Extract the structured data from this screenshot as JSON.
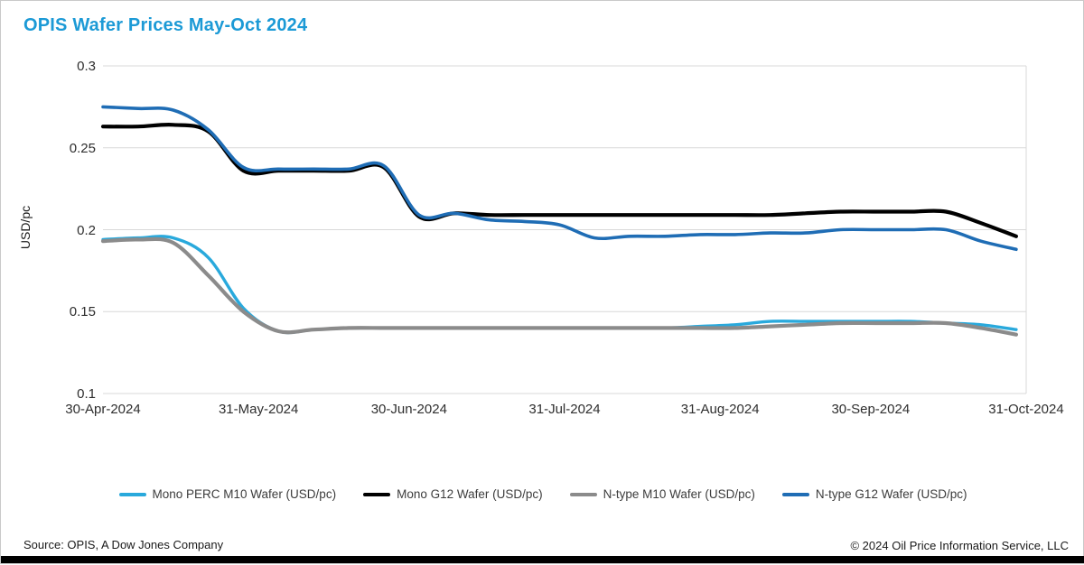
{
  "title": "OPIS Wafer Prices May-Oct 2024",
  "title_color": "#1c9ad6",
  "footer": {
    "source": "Source: OPIS, A Dow Jones Company",
    "copyright": "© 2024 Oil Price Information Service, LLC"
  },
  "colors": {
    "gridline": "#d9d9d9",
    "axis_text": "#2e2e2e",
    "bottom_bar": "#000000"
  },
  "chart_data": {
    "type": "line",
    "title": "OPIS Wafer Prices May-Oct 2024",
    "xlabel": "",
    "ylabel": "USD/pc",
    "ylim": [
      0.1,
      0.3
    ],
    "yticks": [
      0.3,
      0.25,
      0.2,
      0.15,
      0.1
    ],
    "grid": "horizontal",
    "legend_position": "bottom",
    "xtick_labels": [
      "30-Apr-2024",
      "31-May-2024",
      "30-Jun-2024",
      "31-Jul-2024",
      "31-Aug-2024",
      "30-Sep-2024",
      "31-Oct-2024"
    ],
    "xtick_days": [
      0,
      31,
      61,
      92,
      123,
      153,
      184
    ],
    "x_days": [
      0,
      7,
      14,
      21,
      28,
      35,
      42,
      49,
      56,
      63,
      70,
      77,
      84,
      91,
      98,
      105,
      112,
      119,
      126,
      133,
      140,
      147,
      154,
      161,
      168,
      175,
      182
    ],
    "x_dates": [
      "30-Apr",
      "07-May",
      "14-May",
      "21-May",
      "28-May",
      "04-Jun",
      "11-Jun",
      "18-Jun",
      "25-Jun",
      "02-Jul",
      "09-Jul",
      "16-Jul",
      "23-Jul",
      "30-Jul",
      "06-Aug",
      "13-Aug",
      "20-Aug",
      "27-Aug",
      "03-Sep",
      "10-Sep",
      "17-Sep",
      "24-Sep",
      "01-Oct",
      "08-Oct",
      "15-Oct",
      "22-Oct",
      "29-Oct"
    ],
    "series": [
      {
        "name": "Mono PERC M10 Wafer (USD/pc)",
        "color": "#29a9dc",
        "width": 3.4,
        "values": [
          0.194,
          0.195,
          0.195,
          0.183,
          0.152,
          0.138,
          0.139,
          0.14,
          0.14,
          0.14,
          0.14,
          0.14,
          0.14,
          0.14,
          0.14,
          0.14,
          0.14,
          0.141,
          0.142,
          0.144,
          0.144,
          0.144,
          0.144,
          0.144,
          0.143,
          0.142,
          0.139
        ]
      },
      {
        "name": "Mono G12 Wafer (USD/pc)",
        "color": "#000000",
        "width": 4.2,
        "values": [
          0.263,
          0.263,
          0.264,
          0.26,
          0.236,
          0.236,
          0.236,
          0.236,
          0.238,
          0.208,
          0.21,
          0.209,
          0.209,
          0.209,
          0.209,
          0.209,
          0.209,
          0.209,
          0.209,
          0.209,
          0.21,
          0.211,
          0.211,
          0.211,
          0.211,
          0.204,
          0.196
        ]
      },
      {
        "name": "N-type M10 Wafer (USD/pc)",
        "color": "#8b8b8b",
        "width": 4.2,
        "values": [
          0.193,
          0.194,
          0.192,
          0.172,
          0.15,
          0.138,
          0.139,
          0.14,
          0.14,
          0.14,
          0.14,
          0.14,
          0.14,
          0.14,
          0.14,
          0.14,
          0.14,
          0.14,
          0.14,
          0.141,
          0.142,
          0.143,
          0.143,
          0.143,
          0.143,
          0.14,
          0.136
        ]
      },
      {
        "name": "N-type G12 Wafer (USD/pc)",
        "color": "#1f6db5",
        "width": 3.6,
        "values": [
          0.275,
          0.274,
          0.273,
          0.261,
          0.238,
          0.237,
          0.237,
          0.237,
          0.239,
          0.209,
          0.21,
          0.206,
          0.205,
          0.203,
          0.195,
          0.196,
          0.196,
          0.197,
          0.197,
          0.198,
          0.198,
          0.2,
          0.2,
          0.2,
          0.2,
          0.193,
          0.188
        ]
      }
    ]
  }
}
